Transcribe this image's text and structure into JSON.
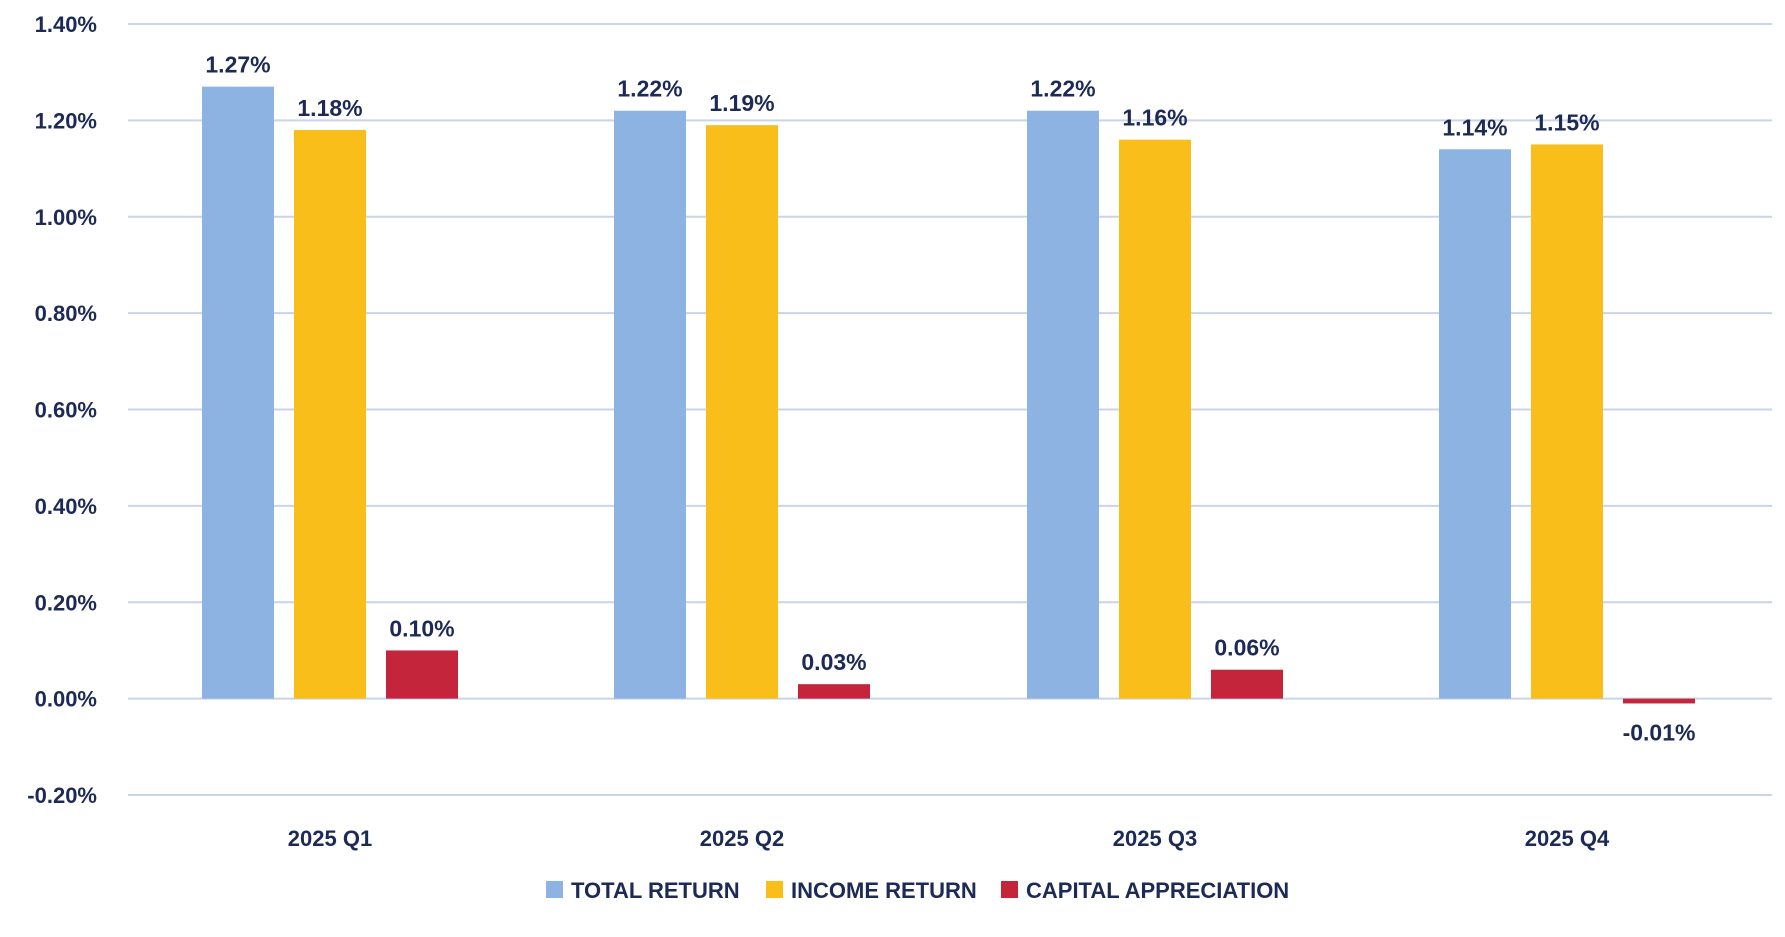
{
  "chart_data": {
    "type": "bar",
    "categories": [
      "2025 Q1",
      "2025 Q2",
      "2025 Q3",
      "2025 Q4"
    ],
    "series": [
      {
        "name": "TOTAL RETURN",
        "values": [
          1.27,
          1.22,
          1.22,
          1.14
        ],
        "labels": [
          "1.27%",
          "1.22%",
          "1.22%",
          "1.14%"
        ],
        "color": "#8db3e2"
      },
      {
        "name": "INCOME RETURN",
        "values": [
          1.18,
          1.19,
          1.16,
          1.15
        ],
        "labels": [
          "1.18%",
          "1.19%",
          "1.16%",
          "1.15%"
        ],
        "color": "#f9be1a"
      },
      {
        "name": "CAPITAL APPRECIATION",
        "values": [
          0.1,
          0.03,
          0.06,
          -0.01
        ],
        "labels": [
          "0.10%",
          "0.03%",
          "0.06%",
          "-0.01%"
        ],
        "color": "#c4253a"
      }
    ],
    "y_ticks": [
      1.4,
      1.2,
      1.0,
      0.8,
      0.6,
      0.4,
      0.2,
      0.0,
      -0.2
    ],
    "y_tick_labels": [
      "1.40%",
      "1.20%",
      "1.00%",
      "0.80%",
      "0.60%",
      "0.40%",
      "0.20%",
      "0.00%",
      "-0.20%"
    ],
    "ylim": [
      -0.2,
      1.4
    ],
    "grid": true,
    "legend_position": "bottom-center",
    "title": "",
    "xlabel": "",
    "ylabel": "",
    "colors": {
      "grid": "#c9d3ea",
      "text": "#1c2a55"
    }
  }
}
